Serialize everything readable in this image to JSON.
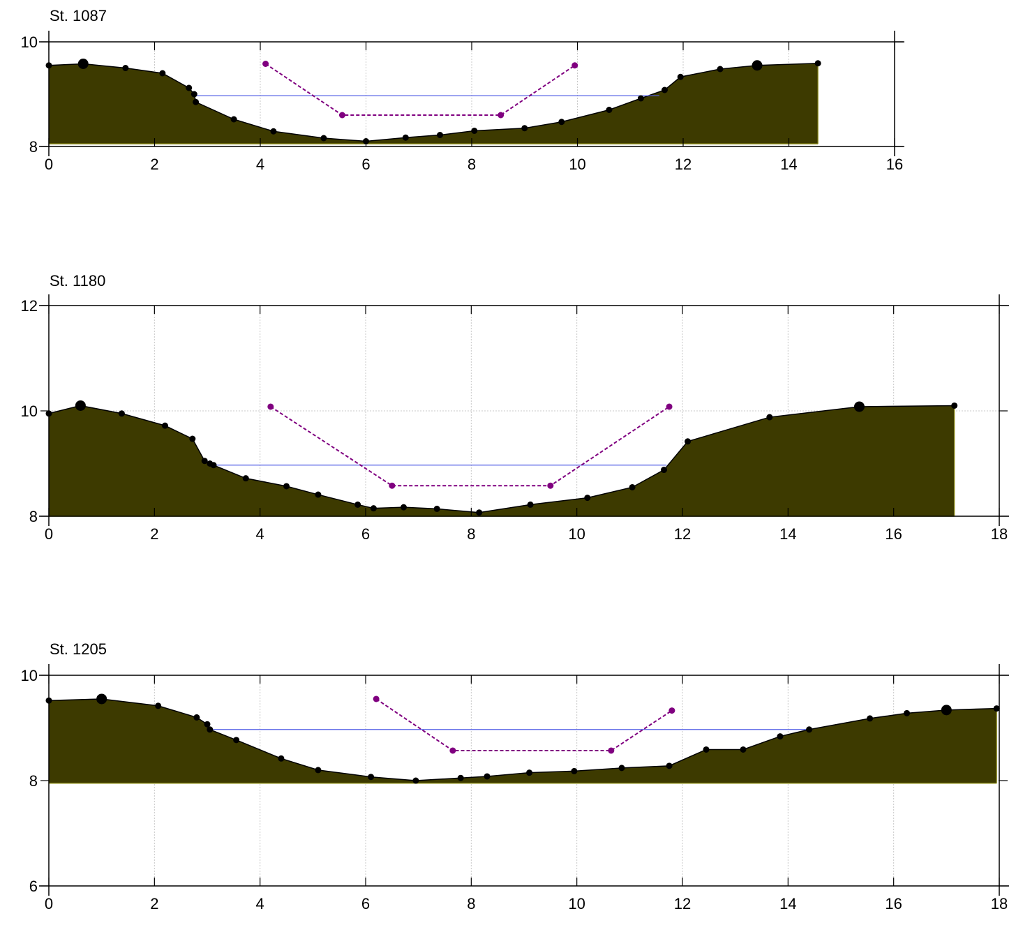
{
  "colors": {
    "ground_fill": "#3d3a00",
    "ground_edge": "#000000",
    "ground_base": "#8a8a1a",
    "water_line": "#5560e6",
    "trapezoid": "#800080",
    "points": "#000000",
    "grid": "#c8c8c8"
  },
  "chart_data": [
    {
      "type": "area",
      "title": "St. 1087",
      "xlim": [
        0,
        16
      ],
      "ylim": [
        8,
        10
      ],
      "xticks": [
        0,
        2,
        4,
        6,
        8,
        10,
        12,
        14,
        16
      ],
      "yticks": [
        8,
        10
      ],
      "grid": "vertical",
      "base_elevation": 8.05,
      "ground": {
        "x": [
          0,
          0.65,
          1.45,
          2.15,
          2.65,
          2.75,
          2.78,
          3.5,
          4.25,
          5.2,
          6.0,
          6.75,
          7.4,
          8.05,
          9.0,
          9.7,
          10.6,
          11.2,
          11.65,
          11.95,
          12.7,
          13.4,
          14.55
        ],
        "y": [
          9.55,
          9.58,
          9.5,
          9.4,
          9.12,
          9.0,
          8.85,
          8.52,
          8.29,
          8.16,
          8.1,
          8.17,
          8.22,
          8.3,
          8.35,
          8.47,
          8.7,
          8.92,
          9.08,
          9.33,
          9.48,
          9.55,
          9.59
        ]
      },
      "banks": {
        "x": [
          0.65,
          13.4
        ],
        "y": [
          9.58,
          9.55
        ]
      },
      "water": {
        "x": [
          2.75,
          11.55
        ],
        "y": [
          8.97,
          8.97
        ]
      },
      "trapezoid": {
        "x": [
          4.1,
          5.55,
          8.55,
          9.95
        ],
        "y": [
          9.58,
          8.6,
          8.6,
          9.55
        ]
      }
    },
    {
      "type": "area",
      "title": "St. 1180",
      "xlim": [
        0,
        18
      ],
      "ylim": [
        8,
        12
      ],
      "xticks": [
        0,
        2,
        4,
        6,
        8,
        10,
        12,
        14,
        16,
        18
      ],
      "yticks": [
        8,
        10,
        12
      ],
      "grid": "vertical",
      "base_elevation": 8.0,
      "ground": {
        "x": [
          0,
          0.6,
          1.38,
          2.2,
          2.72,
          2.95,
          3.05,
          3.12,
          3.73,
          4.5,
          5.1,
          5.85,
          6.15,
          6.72,
          7.35,
          8.15,
          9.12,
          10.2,
          11.05,
          11.65,
          12.1,
          13.65,
          15.35,
          17.15
        ],
        "y": [
          9.95,
          10.1,
          9.95,
          9.72,
          9.47,
          9.05,
          9.0,
          8.97,
          8.72,
          8.57,
          8.41,
          8.22,
          8.15,
          8.17,
          8.14,
          8.07,
          8.22,
          8.35,
          8.55,
          8.88,
          9.42,
          9.88,
          10.08,
          10.1
        ]
      },
      "banks": {
        "x": [
          0.6,
          15.35
        ],
        "y": [
          10.1,
          10.08
        ]
      },
      "water": {
        "x": [
          3.1,
          11.7
        ],
        "y": [
          8.97,
          8.97
        ]
      },
      "trapezoid": {
        "x": [
          4.2,
          6.5,
          9.5,
          11.75
        ],
        "y": [
          10.08,
          8.58,
          8.58,
          10.08
        ]
      }
    },
    {
      "type": "area",
      "title": "St. 1205",
      "xlim": [
        0,
        18
      ],
      "ylim": [
        6,
        10
      ],
      "xticks": [
        0,
        2,
        4,
        6,
        8,
        10,
        12,
        14,
        16,
        18
      ],
      "yticks": [
        6,
        8,
        10
      ],
      "grid": "vertical",
      "base_elevation": 7.95,
      "ground": {
        "x": [
          0,
          1.0,
          2.07,
          2.8,
          3.0,
          3.05,
          3.55,
          4.4,
          5.1,
          6.1,
          6.95,
          7.8,
          8.3,
          9.1,
          9.95,
          10.85,
          11.75,
          12.45,
          13.15,
          13.85,
          14.4,
          15.55,
          16.25,
          17.0,
          17.95
        ],
        "y": [
          9.52,
          9.55,
          9.42,
          9.2,
          9.07,
          8.97,
          8.77,
          8.42,
          8.2,
          8.07,
          8.0,
          8.05,
          8.08,
          8.15,
          8.18,
          8.24,
          8.28,
          8.59,
          8.59,
          8.84,
          8.97,
          9.18,
          9.28,
          9.34,
          9.37
        ]
      },
      "banks": {
        "x": [
          1.0,
          17.0
        ],
        "y": [
          9.55,
          9.34
        ]
      },
      "water": {
        "x": [
          3.05,
          14.4
        ],
        "y": [
          8.97,
          8.97
        ]
      },
      "trapezoid": {
        "x": [
          6.2,
          7.65,
          10.65,
          11.8
        ],
        "y": [
          9.55,
          8.57,
          8.57,
          9.33
        ]
      }
    }
  ]
}
